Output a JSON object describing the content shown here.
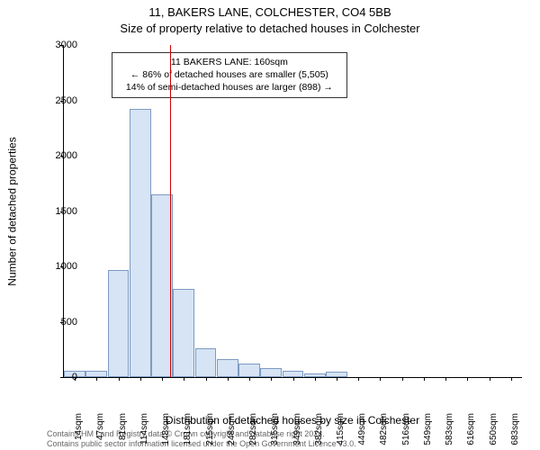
{
  "title_line1": "11, BAKERS LANE, COLCHESTER, CO4 5BB",
  "title_line2": "Size of property relative to detached houses in Colchester",
  "y_axis_label": "Number of detached properties",
  "x_axis_label": "Distribution of detached houses by size in Colchester",
  "footer_line1": "Contains HM Land Registry data © Crown copyright and database right 2024.",
  "footer_line2": "Contains public sector information licensed under the Open Government Licence v3.0.",
  "annotation": {
    "line1": "11 BAKERS LANE: 160sqm",
    "line2": "← 86% of detached houses are smaller (5,505)",
    "line3": "14% of semi-detached houses are larger (898) →"
  },
  "chart": {
    "type": "histogram",
    "ylim_max": 3000,
    "ytick_step": 500,
    "yticks": [
      0,
      500,
      1000,
      1500,
      2000,
      2500,
      3000
    ],
    "reference_line_x": 160,
    "reference_line_color": "#cc0000",
    "bar_fill": "#d6e4f5",
    "bar_border": "#7d9bc1",
    "background_color": "#ffffff",
    "xlabel_suffix": "sqm",
    "title_fontsize": 13,
    "label_fontsize": 12,
    "tick_fontsize": 11,
    "bins": [
      {
        "x": 14,
        "count": 60
      },
      {
        "x": 47,
        "count": 60
      },
      {
        "x": 81,
        "count": 970
      },
      {
        "x": 114,
        "count": 2420
      },
      {
        "x": 148,
        "count": 1650
      },
      {
        "x": 181,
        "count": 800
      },
      {
        "x": 215,
        "count": 260
      },
      {
        "x": 248,
        "count": 160
      },
      {
        "x": 282,
        "count": 120
      },
      {
        "x": 315,
        "count": 80
      },
      {
        "x": 349,
        "count": 55
      },
      {
        "x": 382,
        "count": 30
      },
      {
        "x": 415,
        "count": 50
      },
      {
        "x": 449,
        "count": 0
      },
      {
        "x": 482,
        "count": 0
      },
      {
        "x": 516,
        "count": 0
      },
      {
        "x": 549,
        "count": 0
      },
      {
        "x": 583,
        "count": 0
      },
      {
        "x": 616,
        "count": 0
      },
      {
        "x": 650,
        "count": 0
      },
      {
        "x": 683,
        "count": 0
      }
    ]
  }
}
